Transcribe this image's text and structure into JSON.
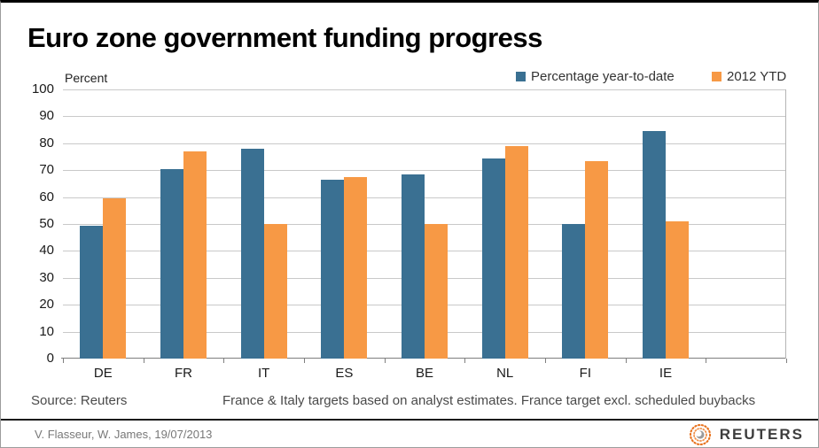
{
  "chart_data": {
    "type": "bar",
    "title": "Euro zone government funding progress",
    "ylabel": "Percent",
    "xlabel": "",
    "categories": [
      "DE",
      "FR",
      "IT",
      "ES",
      "BE",
      "NL",
      "FI",
      "IE"
    ],
    "series": [
      {
        "name": "Percentage year-to-date",
        "color": "#3A7092",
        "values": [
          49.5,
          70.5,
          78,
          66.5,
          68.5,
          74.5,
          50,
          84.5
        ]
      },
      {
        "name": "2012 YTD",
        "color": "#F79945",
        "values": [
          59.5,
          77,
          50,
          67.5,
          50,
          79,
          73.5,
          51
        ]
      }
    ],
    "ylim": [
      0,
      100
    ],
    "yticks": [
      0,
      10,
      20,
      30,
      40,
      50,
      60,
      70,
      80,
      90,
      100
    ],
    "grid": true,
    "legend_position": "top-right"
  },
  "notes": {
    "source": "Source: Reuters",
    "methodology": "France & Italy targets based on analyst estimates. France target excl. scheduled buybacks"
  },
  "footer": {
    "credit": "V. Flasseur, W. James, 19/07/2013",
    "brand": "REUTERS"
  },
  "colors": {
    "series1": "#3A7092",
    "series2": "#F79945",
    "gridline": "#C9C9C9",
    "axis": "#7F7F7F",
    "logo_orange": "#E8731F"
  }
}
